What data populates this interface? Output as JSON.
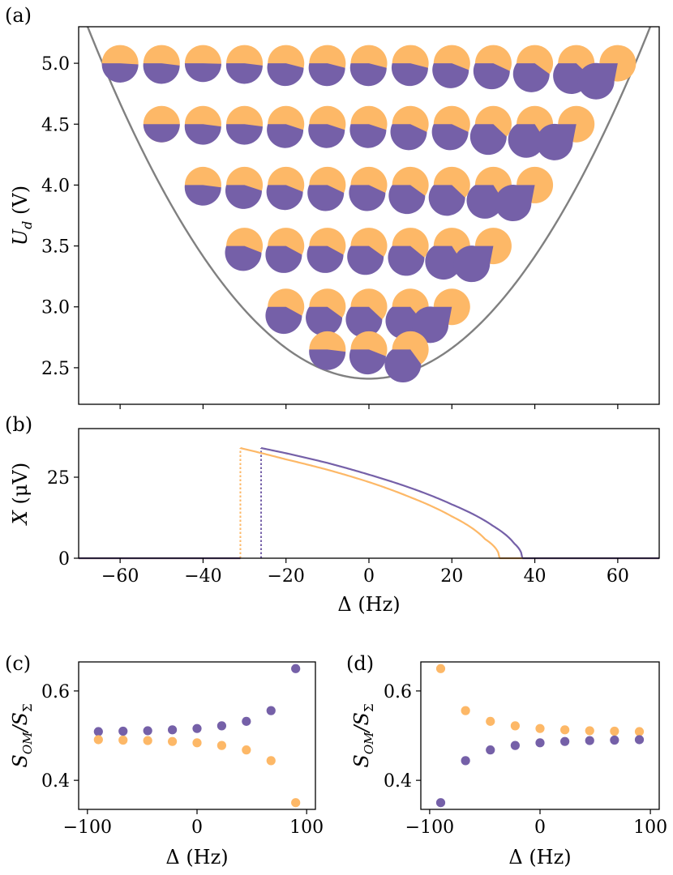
{
  "colors": {
    "purple": "#7560a8",
    "orange": "#fdb867",
    "curve": "#808080"
  },
  "chart_data": [
    {
      "id": "a",
      "type": "scatter",
      "panel_label": "(a)",
      "xlabel": "",
      "ylabel_main": "U",
      "ylabel_sub": "d",
      "ylabel_unit": "(V)",
      "xlim": [
        -70,
        70
      ],
      "ylim": [
        2.2,
        5.3
      ],
      "xticks": [
        -60,
        -40,
        -20,
        0,
        20,
        40,
        60
      ],
      "yticks": [
        2.5,
        3.0,
        3.5,
        4.0,
        4.5,
        5.0
      ],
      "ytick_labels": [
        "2.5",
        "3.0",
        "3.5",
        "4.0",
        "4.5",
        "5.0"
      ],
      "threshold_curve": {
        "min": 2.41,
        "coef": 0.000628,
        "note": "U = 2.41 + 0.000628*Δ^2"
      },
      "pie_rows": [
        {
          "u": 5.0,
          "x": [
            -60,
            -50,
            -40,
            -30,
            -20,
            -10,
            0,
            10,
            20,
            30,
            40,
            50,
            60
          ],
          "purple_fraction": [
            0.51,
            0.52,
            0.505,
            0.52,
            0.54,
            0.54,
            0.54,
            0.54,
            0.56,
            0.57,
            0.6,
            0.62,
            0.78
          ]
        },
        {
          "u": 4.5,
          "x": [
            -50,
            -40,
            -30,
            -20,
            -10,
            0,
            10,
            20,
            30,
            40,
            50
          ],
          "purple_fraction": [
            0.5,
            0.52,
            0.52,
            0.55,
            0.55,
            0.55,
            0.57,
            0.57,
            0.62,
            0.66,
            0.78
          ]
        },
        {
          "u": 4.0,
          "x": [
            -40,
            -30,
            -20,
            -10,
            0,
            10,
            20,
            30,
            40
          ],
          "purple_fraction": [
            0.52,
            0.55,
            0.56,
            0.57,
            0.57,
            0.6,
            0.62,
            0.66,
            0.78
          ]
        },
        {
          "u": 3.5,
          "x": [
            -30,
            -20,
            -10,
            0,
            10,
            20,
            30
          ],
          "purple_fraction": [
            0.56,
            0.58,
            0.58,
            0.6,
            0.61,
            0.66,
            0.78
          ]
        },
        {
          "u": 3.0,
          "x": [
            -20,
            -10,
            0,
            10,
            20
          ],
          "purple_fraction": [
            0.58,
            0.6,
            0.62,
            0.64,
            0.78
          ]
        },
        {
          "u": 2.65,
          "x": [
            -10,
            0,
            10
          ],
          "purple_fraction": [
            0.52,
            0.56,
            0.65
          ]
        }
      ]
    },
    {
      "id": "b",
      "type": "line",
      "panel_label": "(b)",
      "xlabel": "Δ (Hz)",
      "ylabel_main": "X",
      "ylabel_unit": "(μV)",
      "xlim": [
        -70,
        70
      ],
      "ylim": [
        0,
        40
      ],
      "xticks": [
        -60,
        -40,
        -20,
        0,
        20,
        40,
        60
      ],
      "yticks": [
        0,
        25
      ],
      "series": [
        {
          "name": "purple",
          "jump_x": -26,
          "start_x": -26,
          "end_x": 37,
          "x": [
            -26,
            -20,
            -10,
            0,
            10,
            20,
            30,
            35,
            37
          ],
          "y": [
            34,
            32.4,
            29.4,
            25.8,
            21.7,
            16.6,
            9.9,
            4.6,
            0
          ]
        },
        {
          "name": "orange",
          "jump_x": -31,
          "start_x": -31,
          "end_x": 31.5,
          "x": [
            -31,
            -20,
            -10,
            0,
            10,
            20,
            28,
            31.5
          ],
          "y": [
            34,
            30.5,
            27.3,
            23.5,
            18.8,
            12.9,
            5.9,
            0
          ]
        }
      ]
    },
    {
      "id": "c",
      "type": "scatter",
      "panel_label": "(c)",
      "xlabel": "Δ (Hz)",
      "ylabel_main": "S",
      "ylabel_sub": "OM",
      "ylabel_den": "S",
      "ylabel_den_sub": "Σ",
      "xlim": [
        -108,
        108
      ],
      "ylim": [
        0.335,
        0.665
      ],
      "xticks": [
        -100,
        0,
        100
      ],
      "yticks": [
        0.4,
        0.6
      ],
      "x": [
        -90,
        -67.5,
        -45,
        -22.5,
        0,
        22.5,
        45,
        67.5,
        90
      ],
      "series": [
        {
          "name": "purple",
          "values": [
            0.509,
            0.51,
            0.511,
            0.513,
            0.516,
            0.522,
            0.532,
            0.556,
            0.65
          ]
        },
        {
          "name": "orange",
          "values": [
            0.491,
            0.49,
            0.489,
            0.487,
            0.484,
            0.478,
            0.468,
            0.444,
            0.35
          ]
        }
      ]
    },
    {
      "id": "d",
      "type": "scatter",
      "panel_label": "(d)",
      "xlabel": "Δ (Hz)",
      "ylabel_main": "S",
      "ylabel_sub": "OM",
      "ylabel_den": "S",
      "ylabel_den_sub": "Σ",
      "xlim": [
        -108,
        108
      ],
      "ylim": [
        0.335,
        0.665
      ],
      "xticks": [
        -100,
        0,
        100
      ],
      "yticks": [
        0.4,
        0.6
      ],
      "x": [
        -90,
        -67.5,
        -45,
        -22.5,
        0,
        22.5,
        45,
        67.5,
        90
      ],
      "series": [
        {
          "name": "orange",
          "values": [
            0.65,
            0.556,
            0.532,
            0.522,
            0.516,
            0.513,
            0.511,
            0.51,
            0.509
          ]
        },
        {
          "name": "purple",
          "values": [
            0.35,
            0.444,
            0.468,
            0.478,
            0.484,
            0.487,
            0.489,
            0.49,
            0.491
          ]
        }
      ]
    }
  ]
}
